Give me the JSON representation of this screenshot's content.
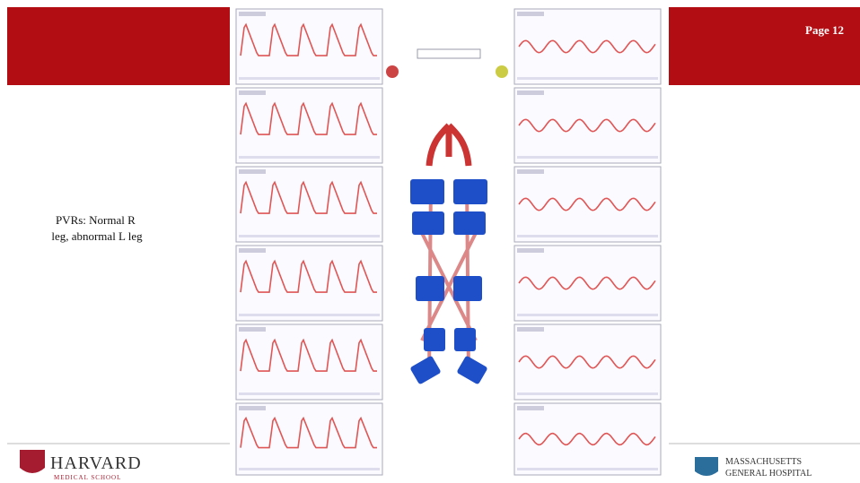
{
  "header": {
    "page": "Page 12"
  },
  "caption": "PVRs: Normal R leg, abnormal L leg",
  "logos": {
    "left_name": "HARVARD",
    "left_sub": "MEDICAL SCHOOL",
    "right_line1": "MASSACHUSETTS",
    "right_line2": "GENERAL HOSPITAL"
  }
}
